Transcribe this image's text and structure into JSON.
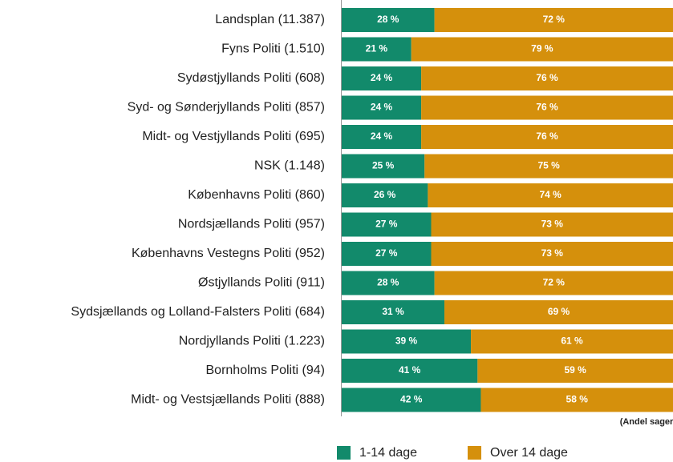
{
  "chart_data": {
    "type": "stacked_bar_horizontal",
    "categories": [
      "Landsplan (11.387)",
      "Fyns Politi (1.510)",
      "Sydøstjyllands Politi (608)",
      "Syd- og Sønderjyllands Politi (857)",
      "Midt- og Vestjyllands Politi (695)",
      "NSK (1.148)",
      "Københavns Politi (860)",
      "Nordsjællands Politi (957)",
      "Københavns Vestegns Politi (952)",
      "Østjyllands Politi (911)",
      "Sydsjællands og Lolland-Falsters Politi (684)",
      "Nordjyllands Politi (1.223)",
      "Bornholms Politi (94)",
      "Midt- og Vestsjællands Politi (888)"
    ],
    "series": [
      {
        "name": "1-14 dage",
        "color": "#128a6b",
        "values": [
          28,
          21,
          24,
          24,
          24,
          25,
          26,
          27,
          27,
          28,
          31,
          39,
          41,
          42
        ],
        "value_labels": [
          "28 %",
          "21 %",
          "24 %",
          "24 %",
          "24 %",
          "25 %",
          "26 %",
          "27 %",
          "27 %",
          "28 %",
          "31 %",
          "39 %",
          "41 %",
          "42 %"
        ]
      },
      {
        "name": "Over 14 dage",
        "color": "#d5900c",
        "values": [
          72,
          79,
          76,
          76,
          76,
          75,
          74,
          73,
          73,
          72,
          69,
          61,
          59,
          58
        ],
        "value_labels": [
          "72 %",
          "79 %",
          "76 %",
          "76 %",
          "76 %",
          "75 %",
          "74 %",
          "73 %",
          "73 %",
          "72 %",
          "69 %",
          "61 %",
          "59 %",
          "58 %"
        ]
      }
    ],
    "xlim": [
      0,
      100
    ],
    "annotation": "(Andel sager)"
  }
}
